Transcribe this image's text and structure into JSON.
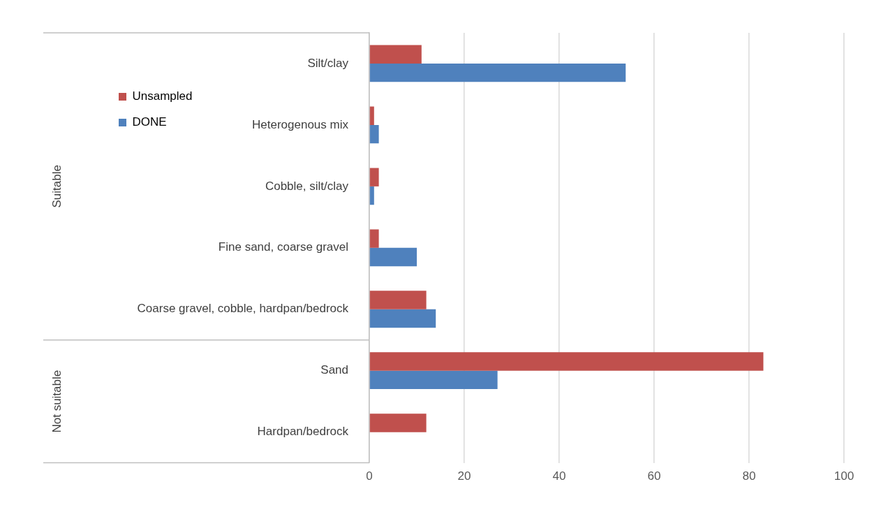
{
  "chart_data": {
    "type": "bar",
    "orientation": "horizontal",
    "categories": [
      "Silt/clay",
      "Heterogenous mix",
      "Cobble, silt/clay",
      "Fine sand, coarse gravel",
      "Coarse gravel, cobble, hardpan/bedrock",
      "Sand",
      "Hardpan/bedrock"
    ],
    "series": [
      {
        "name": "Unsampled",
        "color": "#c0504d",
        "values": [
          11,
          1,
          2,
          2,
          12,
          83,
          12
        ]
      },
      {
        "name": "DONE",
        "color": "#4f81bd",
        "values": [
          54,
          2,
          1,
          10,
          14,
          27,
          0
        ]
      }
    ],
    "xlim": [
      0,
      100
    ],
    "xticks": [
      0,
      20,
      40,
      60,
      80,
      100
    ],
    "grid": "x",
    "legend": "top left",
    "annotations": [
      "Suitable",
      "Not suitable"
    ]
  }
}
